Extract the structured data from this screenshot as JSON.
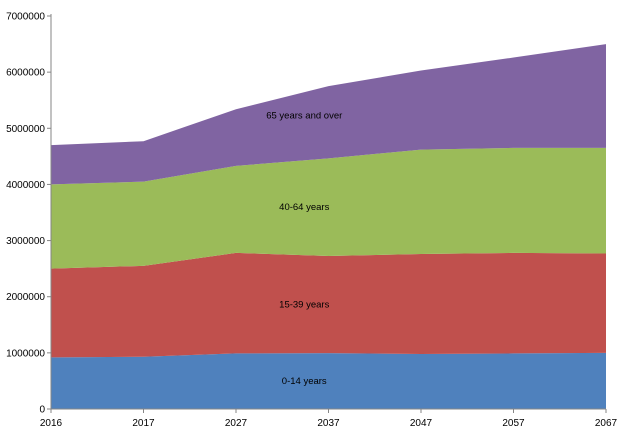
{
  "chart_data": {
    "type": "area",
    "stacked": true,
    "categories": [
      "2016",
      "2017",
      "2027",
      "2037",
      "2047",
      "2057",
      "2067"
    ],
    "series": [
      {
        "name": "0-14 years",
        "color": "#4F81BD",
        "values": [
          920000,
          930000,
          990000,
          995000,
          980000,
          990000,
          1000000
        ]
      },
      {
        "name": "15-39 years",
        "color": "#C0504D",
        "values": [
          1580000,
          1620000,
          1790000,
          1730000,
          1780000,
          1790000,
          1770000
        ]
      },
      {
        "name": "40-64 years",
        "color": "#9BBB59",
        "values": [
          1500000,
          1500000,
          1550000,
          1740000,
          1860000,
          1870000,
          1880000
        ]
      },
      {
        "name": "65 years and over",
        "color": "#8064A2",
        "values": [
          700000,
          720000,
          1010000,
          1285000,
          1410000,
          1610000,
          1850000
        ]
      }
    ],
    "y_ticks": [
      "0",
      "1000000",
      "2000000",
      "3000000",
      "4000000",
      "5000000",
      "6000000",
      "7000000"
    ],
    "ylim": [
      0,
      7000000
    ],
    "grid": false,
    "legend": "inline labels"
  }
}
